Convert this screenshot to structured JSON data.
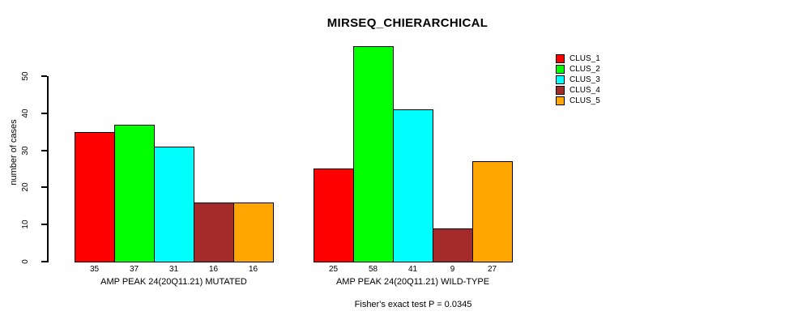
{
  "chart_data": {
    "type": "bar",
    "title": "MIRSEQ_CHIERARCHICAL",
    "ylabel": "number of cases",
    "xlabel": "",
    "ylim": [
      0,
      58
    ],
    "yticks": [
      0,
      10,
      20,
      30,
      40,
      50
    ],
    "grid": false,
    "legend_position": "right",
    "bar_value_labels_shown": true,
    "groups": [
      {
        "label": "AMP PEAK 24(20Q11.21) MUTATED",
        "values": [
          35,
          37,
          31,
          16,
          16
        ]
      },
      {
        "label": "AMP PEAK 24(20Q11.21) WILD-TYPE",
        "values": [
          25,
          58,
          41,
          9,
          27
        ]
      }
    ],
    "series": [
      {
        "name": "CLUS_1",
        "color": "#FF0000"
      },
      {
        "name": "CLUS_2",
        "color": "#00FF00"
      },
      {
        "name": "CLUS_3",
        "color": "#00FFFF"
      },
      {
        "name": "CLUS_4",
        "color": "#A52A2A"
      },
      {
        "name": "CLUS_5",
        "color": "#FFA500"
      }
    ],
    "annotation": "Fisher's exact test P = 0.0345",
    "colors": {
      "axis": "#000000",
      "bar_border": "#000000",
      "background": "#FFFFFF",
      "text": "#000000"
    }
  }
}
